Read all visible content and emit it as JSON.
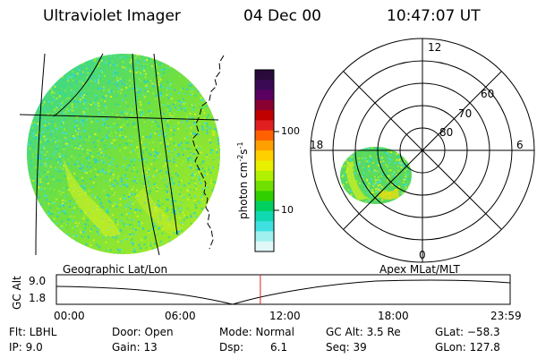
{
  "header": {
    "title": "Ultraviolet Imager",
    "date": "04 Dec 00",
    "time": "10:47:07 UT"
  },
  "colorbar": {
    "label": "photon cm",
    "label_exp1": "-2",
    "label_mid": "s",
    "label_exp2": "-1",
    "ticks": [
      "100",
      "10"
    ],
    "colors": [
      "#2a0a3a",
      "#3a0a55",
      "#5a0060",
      "#8a0030",
      "#c00000",
      "#e02020",
      "#ff6000",
      "#ffa000",
      "#ffd000",
      "#e8f000",
      "#b0f000",
      "#70e000",
      "#30d000",
      "#00d060",
      "#10d8b0",
      "#40e0e0",
      "#a0f0f0",
      "#e0f8f8"
    ]
  },
  "panels": {
    "left_label": "Geographic Lat/Lon",
    "right_label": "Apex  MLat/MLT",
    "polar_mlt": [
      "12",
      "18",
      "6",
      "0"
    ],
    "polar_lat": [
      "60",
      "70",
      "80"
    ]
  },
  "altitude_plot": {
    "ylabel": "GC Alt",
    "yticks": [
      "9.0",
      "1.8"
    ],
    "xticks": [
      "00:00",
      "06:00",
      "12:00",
      "18:00",
      "23:59"
    ],
    "current_time_hours": 10.78
  },
  "footer": {
    "flt": "Flt: LBHL",
    "ip": "IP:  9.0",
    "door": "Door: Open",
    "gain": "Gain: 13",
    "mode": "Mode: Normal",
    "dsp_label": "Dsp:",
    "dsp_value": "6.1",
    "gc_alt": "GC Alt: 3.5 Re",
    "seq": "Seq: 39",
    "glat": "GLat: −58.3",
    "glon": "GLon: 127.8"
  }
}
